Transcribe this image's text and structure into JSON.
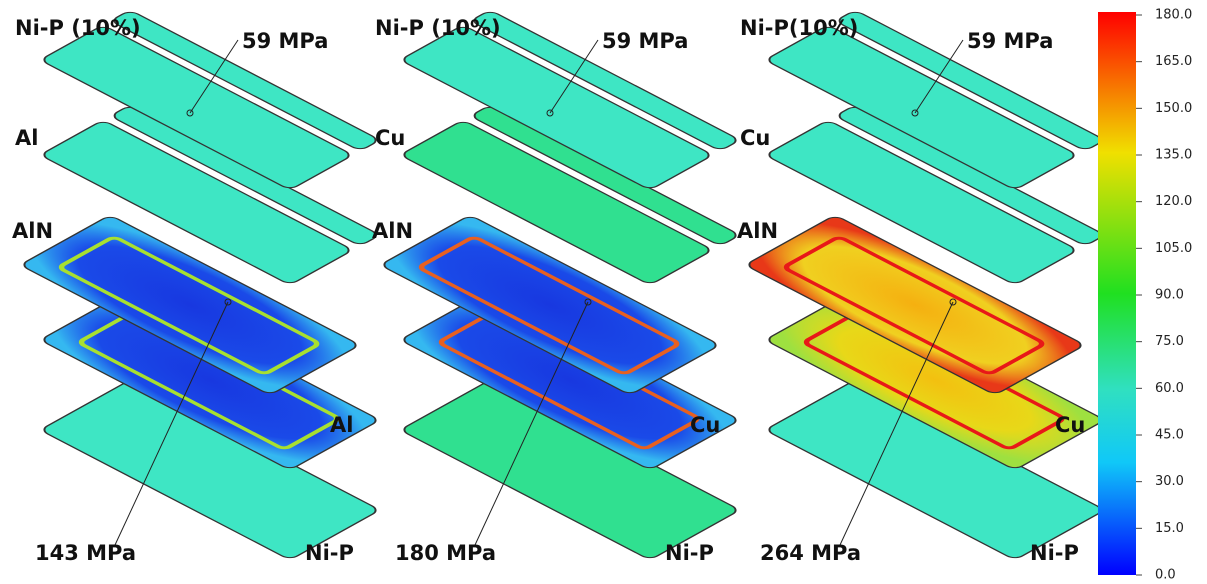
{
  "panels": [
    {
      "top_layer": "Ni-P (10%)",
      "top_stress": "59 MPa",
      "upper_metal": "Al",
      "ceramic": "AlN",
      "lower_metal": "Al",
      "max_stress": "143 MPa",
      "bottom_layer": "Ni-P"
    },
    {
      "top_layer": "Ni-P (10%)",
      "top_stress": "59 MPa",
      "upper_metal": "Cu",
      "ceramic": "AlN",
      "lower_metal": "Cu",
      "max_stress": "180 MPa",
      "bottom_layer": "Ni-P"
    },
    {
      "top_layer": "Ni-P(10%)",
      "top_stress": "59 MPa",
      "upper_metal": "Cu",
      "ceramic": "AlN",
      "lower_metal": "Cu",
      "max_stress": "264 MPa",
      "bottom_layer": "Ni-P"
    }
  ],
  "colorbar": {
    "ticks": [
      "180.0",
      "165.0",
      "150.0",
      "135.0",
      "120.0",
      "105.0",
      "90.0",
      "75.0",
      "60.0",
      "45.0",
      "30.0",
      "15.0",
      "0.0"
    ]
  }
}
